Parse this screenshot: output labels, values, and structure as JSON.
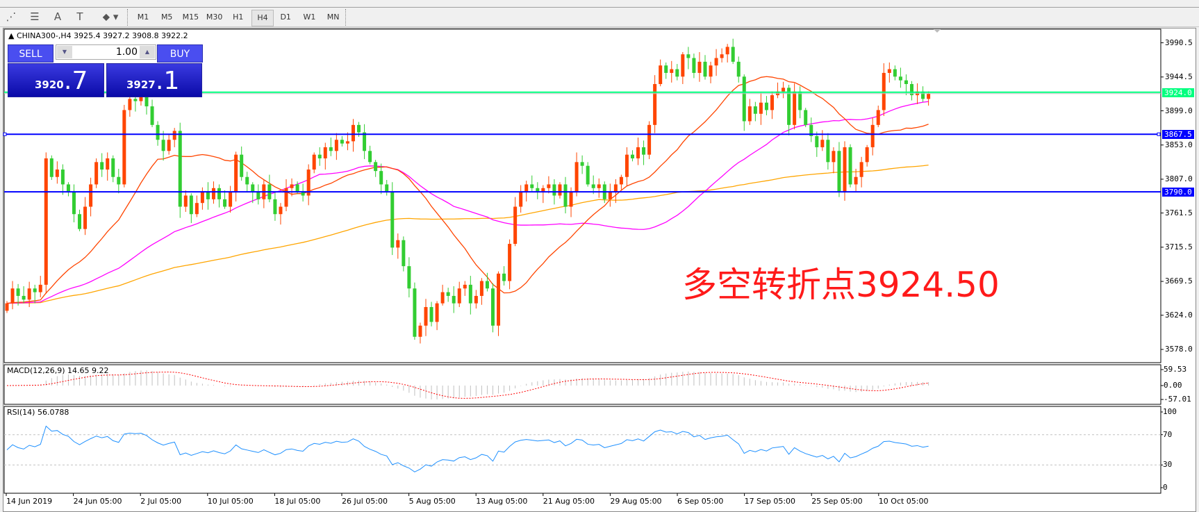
{
  "toolbar": {
    "icons": [
      "elliott-wave-icon",
      "fibonacci-icon",
      "text-icon",
      "text-label-icon",
      "arrows-icon"
    ],
    "icon_glyphs": [
      "⋰",
      "☰",
      "A",
      "T",
      "⬥"
    ],
    "timeframes": [
      "M1",
      "M5",
      "M15",
      "M30",
      "H1",
      "H4",
      "D1",
      "W1",
      "MN"
    ],
    "active_timeframe": "H4"
  },
  "chart": {
    "symbol_line": "CHINA300-,H4  3925.4 3927.2 3908.8 3922.2",
    "annotation": "多空转折点3924.50"
  },
  "trade_panel": {
    "sell_label": "SELL",
    "buy_label": "BUY",
    "lot": "1.00",
    "sell_price_main": "3920",
    "sell_price_big": ".7",
    "buy_price_main": "3927",
    "buy_price_big": ".1"
  },
  "colors": {
    "up_candle": "#ff4500",
    "down_candle": "#32cd32",
    "ma_fast": "#ff4500",
    "ma_mid": "#ff00ff",
    "ma_slow": "#ffa500",
    "hline": "#0000ff",
    "bid_line": "#00ff7f",
    "rsi": "#1e90ff",
    "annotation": "#ff1a1a"
  },
  "price_axis": {
    "ticks": [
      "3990.5",
      "3944.5",
      "3899.0",
      "3853.0",
      "3807.0",
      "3761.5",
      "3715.5",
      "3669.5",
      "3624.0",
      "3578.0"
    ],
    "bid_tag": "3924.0",
    "hline_tags": [
      "3867.5",
      "3790.0"
    ]
  },
  "hlines": [
    3867.5,
    3790.0
  ],
  "bid": 3924.0,
  "macd": {
    "label": "MACD(12,26,9) 14.65 9.22",
    "ticks": [
      "59.53",
      "0.00",
      "-57.01"
    ]
  },
  "rsi": {
    "label": "RSI(14) 56.0788",
    "ticks": [
      "100",
      "70",
      "30",
      "0"
    ]
  },
  "time_axis": [
    "14 Jun 2019",
    "24 Jun 05:00",
    "2 Jul 05:00",
    "10 Jul 05:00",
    "18 Jul 05:00",
    "26 Jul 05:00",
    "5 Aug 05:00",
    "13 Aug 05:00",
    "21 Aug 05:00",
    "29 Aug 05:00",
    "6 Sep 05:00",
    "17 Sep 05:00",
    "25 Sep 05:00",
    "10 Oct 05:00"
  ],
  "chart_data": {
    "type": "candlestick",
    "ylim": [
      3560,
      4000
    ],
    "first_open": 3630,
    "closes": [
      3640,
      3660,
      3650,
      3645,
      3660,
      3655,
      3665,
      3835,
      3810,
      3820,
      3800,
      3790,
      3760,
      3740,
      3770,
      3800,
      3830,
      3820,
      3835,
      3810,
      3800,
      3900,
      3915,
      3912,
      3918,
      3905,
      3880,
      3860,
      3845,
      3860,
      3872,
      3770,
      3785,
      3760,
      3775,
      3790,
      3780,
      3795,
      3780,
      3770,
      3790,
      3840,
      3810,
      3800,
      3790,
      3780,
      3800,
      3780,
      3760,
      3770,
      3795,
      3800,
      3790,
      3785,
      3820,
      3840,
      3835,
      3850,
      3845,
      3860,
      3855,
      3858,
      3880,
      3870,
      3845,
      3830,
      3818,
      3800,
      3790,
      3715,
      3725,
      3690,
      3660,
      3595,
      3610,
      3635,
      3615,
      3640,
      3655,
      3650,
      3640,
      3660,
      3665,
      3640,
      3650,
      3670,
      3660,
      3610,
      3680,
      3670,
      3720,
      3770,
      3790,
      3800,
      3795,
      3790,
      3795,
      3800,
      3785,
      3800,
      3770,
      3790,
      3830,
      3825,
      3800,
      3795,
      3800,
      3780,
      3790,
      3800,
      3810,
      3840,
      3835,
      3850,
      3840,
      3880,
      3935,
      3960,
      3950,
      3955,
      3945,
      3975,
      3970,
      3950,
      3965,
      3945,
      3960,
      3970,
      3975,
      3985,
      3965,
      3945,
      3885,
      3905,
      3895,
      3910,
      3900,
      3920,
      3925,
      3930,
      3880,
      3925,
      3900,
      3880,
      3865,
      3850,
      3860,
      3830,
      3845,
      3790,
      3850,
      3800,
      3810,
      3830,
      3850,
      3880,
      3900,
      3950,
      3955,
      3945,
      3940,
      3935,
      3920,
      3925,
      3915,
      3922.2
    ]
  }
}
